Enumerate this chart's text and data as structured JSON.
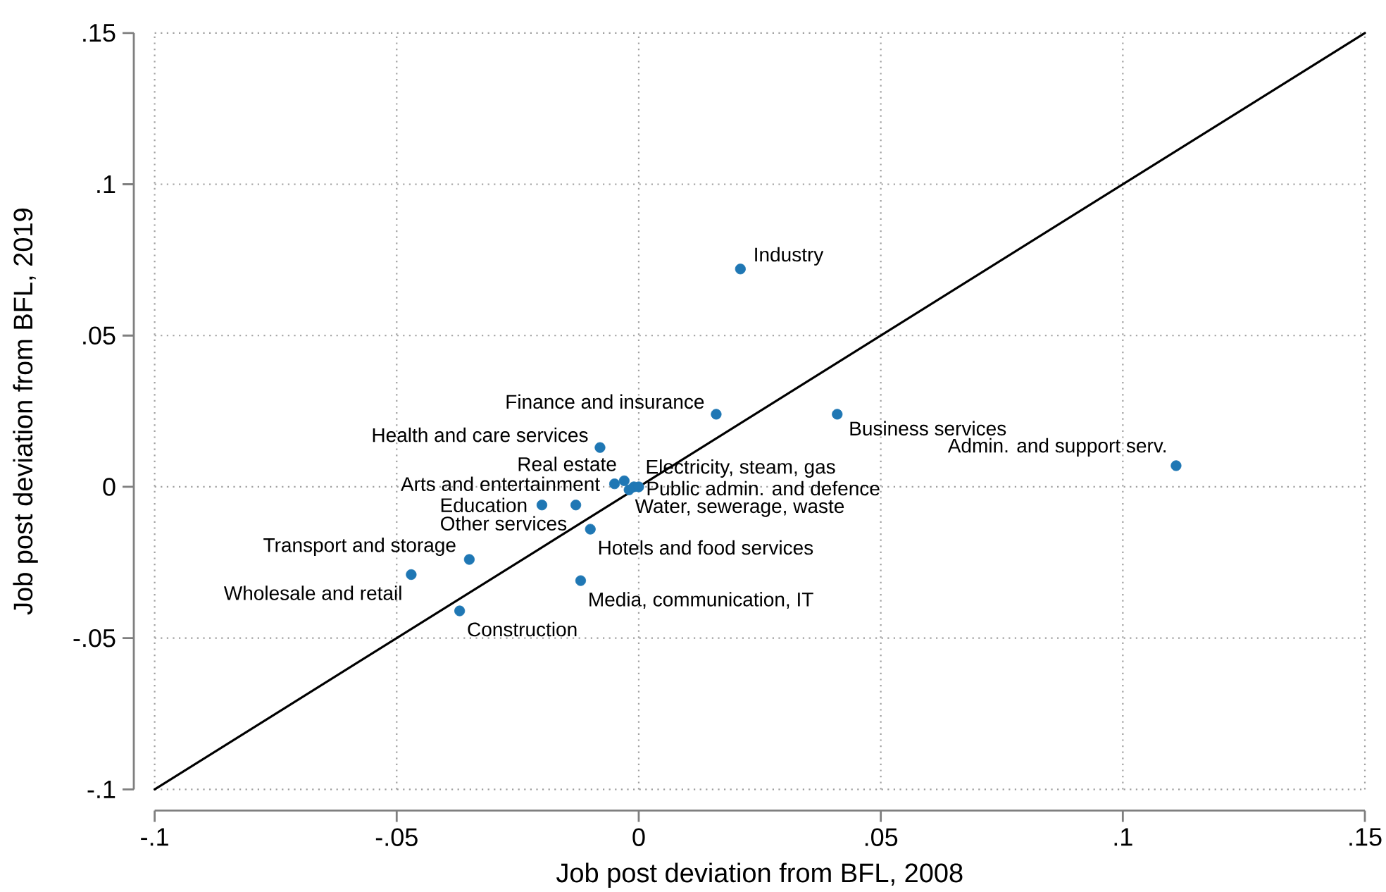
{
  "chart_data": {
    "type": "scatter",
    "xlabel": "Job post deviation from BFL, 2008",
    "ylabel": "Job post deviation from BFL, 2019",
    "xlim": [
      -0.1,
      0.15
    ],
    "ylim": [
      -0.1,
      0.15
    ],
    "xticks": [
      {
        "value": -0.1,
        "label": "-.1"
      },
      {
        "value": -0.05,
        "label": "-.05"
      },
      0,
      {
        "value": 0.05,
        "label": ".05"
      },
      {
        "value": 0.1,
        "label": ".1"
      },
      {
        "value": 0.15,
        "label": ".15"
      }
    ],
    "yticks": [
      {
        "value": -0.1,
        "label": "-.1"
      },
      {
        "value": -0.05,
        "label": "-.05"
      },
      0,
      {
        "value": 0.05,
        "label": ".05"
      },
      {
        "value": 0.1,
        "label": ".1"
      },
      {
        "value": 0.15,
        "label": ".15"
      }
    ],
    "grid": true,
    "marker": "circle",
    "series": [
      {
        "type": "line",
        "color": "#000000",
        "marker": "none",
        "x": [
          -0.1,
          0.15
        ],
        "values": [
          -0.1,
          0.15
        ]
      },
      {
        "color": "#1f77b4",
        "x": [
          0.021,
          0.016,
          0.041,
          0.111,
          -0.008,
          -0.003,
          -0.001,
          -0.005,
          0.0,
          -0.02,
          -0.002,
          -0.013,
          -0.01,
          -0.035,
          -0.047,
          -0.012,
          -0.037
        ],
        "values": [
          0.072,
          0.024,
          0.024,
          0.007,
          0.013,
          0.002,
          0.0,
          0.001,
          0.0,
          -0.006,
          -0.001,
          -0.006,
          -0.014,
          -0.024,
          -0.029,
          -0.031,
          -0.041
        ]
      }
    ],
    "annotations": [
      {
        "text": "Industry",
        "x": 0.021,
        "y": 0.072
      },
      {
        "text": "Finance and insurance",
        "x": 0.016,
        "y": 0.024
      },
      {
        "text": "Business services",
        "x": 0.041,
        "y": 0.024
      },
      {
        "text": "Admin. and support serv.",
        "x": 0.111,
        "y": 0.007
      },
      {
        "text": "Health and care services",
        "x": -0.008,
        "y": 0.013
      },
      {
        "text": "Real estate",
        "x": -0.003,
        "y": 0.002
      },
      {
        "text": "Electricity, steam, gas",
        "x": -0.001,
        "y": 0.0
      },
      {
        "text": "Arts and entertainment",
        "x": -0.005,
        "y": 0.001
      },
      {
        "text": "Public admin. and defence",
        "x": 0.0,
        "y": 0.0
      },
      {
        "text": "Education",
        "x": -0.02,
        "y": -0.006
      },
      {
        "text": "Water, sewerage, waste",
        "x": -0.002,
        "y": -0.001
      },
      {
        "text": "Other services",
        "x": -0.013,
        "y": -0.006
      },
      {
        "text": "Hotels and food services",
        "x": -0.01,
        "y": -0.014
      },
      {
        "text": "Transport and storage",
        "x": -0.035,
        "y": -0.024
      },
      {
        "text": "Wholesale and retail",
        "x": -0.047,
        "y": -0.029
      },
      {
        "text": "Media, communication, IT",
        "x": -0.012,
        "y": -0.031
      },
      {
        "text": "Construction",
        "x": -0.037,
        "y": -0.041
      }
    ]
  }
}
